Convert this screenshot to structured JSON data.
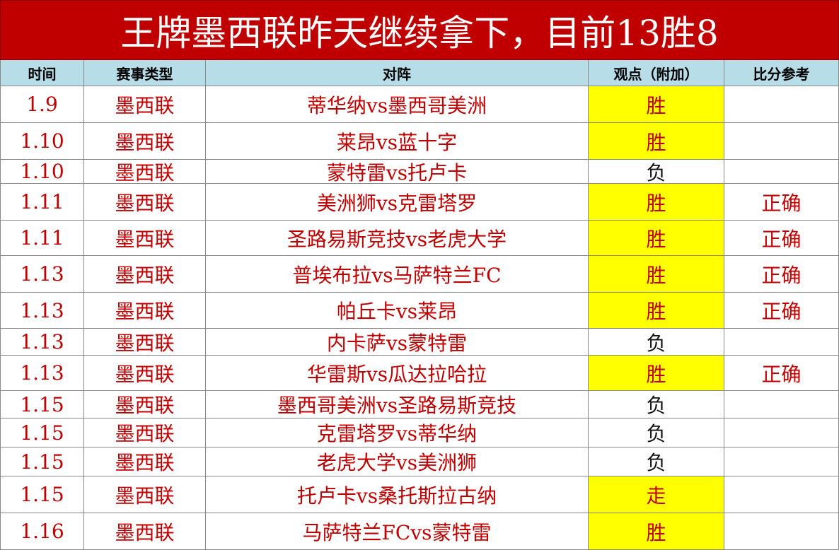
{
  "title": "王牌墨西联昨天继续拿下，目前13胜8",
  "table": {
    "headers": [
      "时间",
      "赛事类型",
      "对阵",
      "观点（附加）",
      "比分参考"
    ],
    "rows": [
      {
        "date": "1.9",
        "league": "墨西联",
        "match": "蒂华纳vs墨西哥美洲",
        "pick": "胜"
      },
      {
        "date": "1.10",
        "league": "墨西联",
        "match": "莱昂vs蓝十字",
        "pick": "胜"
      },
      {
        "date": "1.10",
        "league": "墨西联",
        "match": "蒙特雷vs托卢卡",
        "pick": "负"
      },
      {
        "date": "1.11",
        "league": "墨西联",
        "match": "美洲狮vs克雷塔罗",
        "pick": "胜",
        "note": "正确"
      },
      {
        "date": "1.11",
        "league": "墨西联",
        "match": "圣路易斯竞技vs老虎大学",
        "pick": "胜",
        "note": "正确"
      },
      {
        "date": "1.13",
        "league": "墨西联",
        "match": "普埃布拉vs马萨特兰FC",
        "pick": "胜",
        "note": "正确"
      },
      {
        "date": "1.13",
        "league": "墨西联",
        "match": "帕丘卡vs莱昂",
        "pick": "胜",
        "note": "正确"
      },
      {
        "date": "1.13",
        "league": "墨西联",
        "match": "内卡萨vs蒙特雷",
        "pick": "负"
      },
      {
        "date": "1.13",
        "league": "墨西联",
        "match": "华雷斯vs瓜达拉哈拉",
        "pick": "胜",
        "note": "正确"
      },
      {
        "date": "1.15",
        "league": "墨西联",
        "match": "墨西哥美洲vs圣路易斯竞技",
        "pick": "负"
      },
      {
        "date": "1.15",
        "league": "墨西联",
        "match": "克雷塔罗vs蒂华纳",
        "pick": "负"
      },
      {
        "date": "1.15",
        "league": "墨西联",
        "match": "老虎大学vs美洲狮",
        "pick": "负"
      },
      {
        "date": "1.15",
        "league": "墨西联",
        "match": "托卢卡vs桑托斯拉古纳",
        "pick": "走"
      },
      {
        "date": "1.16",
        "league": "墨西联",
        "match": "马萨特兰FCvs蒙特雷",
        "pick": "胜"
      }
    ]
  }
}
